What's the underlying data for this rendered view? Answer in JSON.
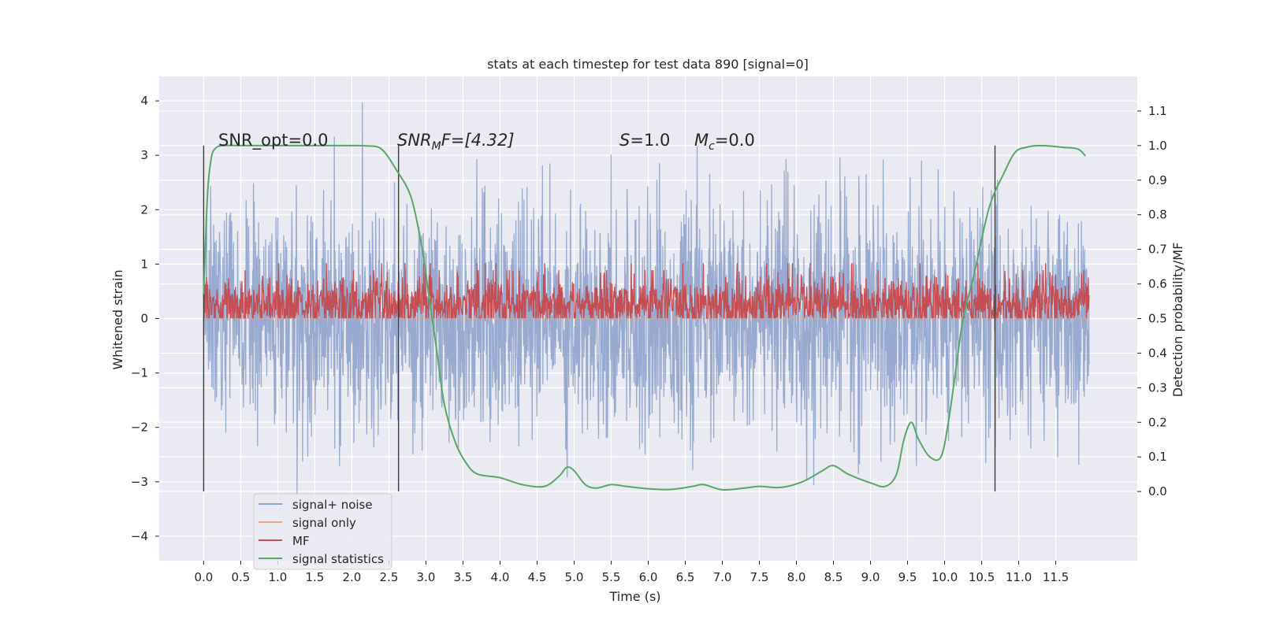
{
  "chart_data": {
    "type": "line",
    "title": "stats at each timestep for test data 890 [signal=0]",
    "xlabel": "Time (s)",
    "ylabel": "Whitened strain",
    "ylabel_right": "Detection probability/MF",
    "xlim": [
      -0.6,
      12.6
    ],
    "ylim": [
      -4.45,
      4.45
    ],
    "ylim_right": [
      -0.2,
      1.2
    ],
    "x_ticks": [
      "0.0",
      "0.5",
      "1.0",
      "1.5",
      "2.0",
      "2.5",
      "3.0",
      "3.5",
      "4.0",
      "4.5",
      "5.0",
      "5.5",
      "6.0",
      "6.5",
      "7.0",
      "7.5",
      "8.0",
      "8.5",
      "9.0",
      "9.5",
      "10.0",
      "10.5",
      "11.0",
      "11.5"
    ],
    "y_ticks_left": [
      "4",
      "3",
      "2",
      "1",
      "0",
      "−1",
      "−2",
      "−3",
      "−4"
    ],
    "y_ticks_right": [
      "1.1",
      "1.0",
      "0.9",
      "0.8",
      "0.7",
      "0.6",
      "0.5",
      "0.4",
      "0.3",
      "0.2",
      "0.1",
      "0.0"
    ],
    "grid": true,
    "legend_position": "lower-left",
    "annotations": {
      "snr_opt": "SNR_opt=0.0",
      "snr_mf_sym": "SNR",
      "snr_mf_sub": "M",
      "snr_mf_rest": "F=[4.32]",
      "s_sym": "S",
      "s_rest": "=1.0",
      "mc_sym": "M",
      "mc_sub": "c",
      "mc_rest": "=0.0"
    },
    "vertical_markers_x": [
      0.0,
      2.63,
      10.68
    ],
    "series": [
      {
        "name": "signal+ noise",
        "color": "#8fa3cc",
        "description_range": [
          -4.1,
          4.1
        ],
        "x_range": [
          0.0,
          11.95
        ]
      },
      {
        "name": "signal only",
        "color": "#e8a58a",
        "values_constant": 0.0
      },
      {
        "name": "MF",
        "color": "#c44e52",
        "band": [
          0.05,
          1.0
        ],
        "x_range": [
          0.0,
          11.95
        ]
      },
      {
        "name": "signal statistics",
        "color": "#55a868",
        "x": [
          0.0,
          0.05,
          0.1,
          0.15,
          0.25,
          0.5,
          1.0,
          1.5,
          2.0,
          2.2,
          2.4,
          2.6,
          2.8,
          2.95,
          3.05,
          3.15,
          3.25,
          3.4,
          3.55,
          3.7,
          4.0,
          4.3,
          4.6,
          4.8,
          4.9,
          5.0,
          5.15,
          5.3,
          5.5,
          5.7,
          6.0,
          6.3,
          6.6,
          6.75,
          7.0,
          7.3,
          7.5,
          7.8,
          8.1,
          8.35,
          8.5,
          8.7,
          9.0,
          9.2,
          9.35,
          9.45,
          9.55,
          9.65,
          9.8,
          9.95,
          10.05,
          10.15,
          10.25,
          10.4,
          10.6,
          10.8,
          10.95,
          11.1,
          11.3,
          11.6,
          11.8,
          11.9
        ],
        "values": [
          0.57,
          0.85,
          0.96,
          0.99,
          1.0,
          1.0,
          1.0,
          1.0,
          1.0,
          0.999,
          0.99,
          0.93,
          0.85,
          0.7,
          0.55,
          0.4,
          0.25,
          0.14,
          0.08,
          0.05,
          0.04,
          0.02,
          0.015,
          0.045,
          0.07,
          0.06,
          0.02,
          0.01,
          0.02,
          0.015,
          0.008,
          0.006,
          0.015,
          0.02,
          0.005,
          0.01,
          0.015,
          0.012,
          0.03,
          0.06,
          0.075,
          0.05,
          0.025,
          0.015,
          0.05,
          0.15,
          0.2,
          0.15,
          0.1,
          0.1,
          0.2,
          0.35,
          0.5,
          0.63,
          0.82,
          0.92,
          0.98,
          0.995,
          1.0,
          0.995,
          0.99,
          0.97
        ]
      }
    ]
  }
}
